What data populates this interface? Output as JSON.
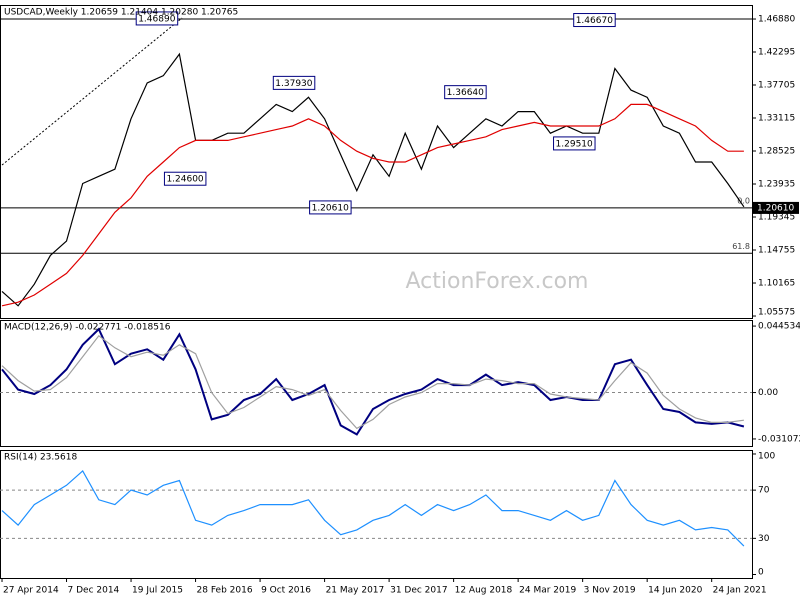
{
  "watermark": "ActionForex.com",
  "chart_data": [
    {
      "type": "line",
      "title": "USDCAD,Weekly  1.20659 1.21404 1.20280 1.20765",
      "x": [
        0,
        8,
        16,
        24,
        32,
        40,
        48,
        56,
        64,
        72,
        80,
        88,
        96,
        104,
        112,
        120,
        128,
        136,
        144,
        152,
        160,
        168,
        176,
        184,
        192,
        200,
        208,
        216,
        224,
        232,
        240,
        248,
        256,
        264,
        272,
        280,
        288,
        296,
        304,
        312,
        320,
        328,
        336,
        344,
        352,
        360,
        368
      ],
      "xlim": [
        -1,
        372
      ],
      "ylim": [
        1.053,
        1.4883
      ],
      "grid": false,
      "series": [
        {
          "color": "#000000",
          "values": [
            1.09,
            1.07,
            1.1,
            1.14,
            1.16,
            1.24,
            1.25,
            1.26,
            1.33,
            1.38,
            1.39,
            1.42,
            1.3,
            1.3,
            1.31,
            1.31,
            1.33,
            1.35,
            1.34,
            1.36,
            1.33,
            1.28,
            1.23,
            1.28,
            1.25,
            1.31,
            1.26,
            1.32,
            1.29,
            1.31,
            1.33,
            1.32,
            1.34,
            1.34,
            1.31,
            1.32,
            1.31,
            1.31,
            1.4,
            1.37,
            1.36,
            1.32,
            1.31,
            1.27,
            1.27,
            1.24,
            1.20765
          ]
        },
        {
          "color": "#e00000",
          "values": [
            1.07,
            1.075,
            1.085,
            1.1,
            1.115,
            1.14,
            1.17,
            1.2,
            1.22,
            1.25,
            1.27,
            1.29,
            1.3,
            1.3,
            1.3,
            1.305,
            1.31,
            1.315,
            1.32,
            1.33,
            1.32,
            1.3,
            1.285,
            1.275,
            1.27,
            1.27,
            1.28,
            1.29,
            1.295,
            1.3,
            1.305,
            1.315,
            1.32,
            1.325,
            1.32,
            1.32,
            1.32,
            1.32,
            1.33,
            1.35,
            1.35,
            1.34,
            1.33,
            1.32,
            1.3,
            1.285,
            1.285
          ]
        }
      ],
      "yticks": [
        {
          "value": 1.4688,
          "label": "1.46880"
        },
        1.42295,
        1.37705,
        1.33115,
        1.28525,
        1.23935,
        1.19345,
        1.14755,
        1.10165,
        1.05575
      ],
      "price_marker": {
        "value": 1.2061,
        "label": "1.20610"
      },
      "levels": [
        {
          "value": 1.4688
        },
        {
          "value": 1.2061,
          "label": "0.0"
        },
        {
          "value": 1.143,
          "label": "61.8"
        }
      ],
      "annotations": [
        {
          "label": "1.46890",
          "value": 1.4689,
          "x": 88
        },
        {
          "label": "1.24600",
          "value": 1.246,
          "x": 102
        },
        {
          "label": "1.37930",
          "value": 1.3793,
          "x": 156
        },
        {
          "label": "1.20610",
          "value": 1.2061,
          "x": 174
        },
        {
          "label": "1.36640",
          "value": 1.3664,
          "x": 241
        },
        {
          "label": "1.29510",
          "value": 1.2951,
          "x": 295
        },
        {
          "label": "1.46670",
          "value": 1.4667,
          "x": 305
        }
      ]
    },
    {
      "type": "line",
      "title": "MACD(12,26,9) -0.022771 -0.018516",
      "x": [
        0,
        8,
        16,
        24,
        32,
        40,
        48,
        56,
        64,
        72,
        80,
        88,
        96,
        104,
        112,
        120,
        128,
        136,
        144,
        152,
        160,
        168,
        176,
        184,
        192,
        200,
        208,
        216,
        224,
        232,
        240,
        248,
        256,
        264,
        272,
        280,
        288,
        296,
        304,
        312,
        320,
        328,
        336,
        344,
        352,
        360,
        368
      ],
      "xlim": [
        -1,
        372
      ],
      "ylim": [
        -0.0358,
        0.0486
      ],
      "grid": true,
      "series": [
        {
          "color": "#000080",
          "values": [
            0.0155,
            0.002,
            -0.001,
            0.005,
            0.0155,
            0.032,
            0.0425,
            0.019,
            0.026,
            0.029,
            0.022,
            0.039,
            0.0155,
            -0.018,
            -0.015,
            -0.005,
            -0.001,
            0.009,
            -0.005,
            -0.001,
            0.005,
            -0.022,
            -0.028,
            -0.011,
            -0.005,
            -0.001,
            0.002,
            0.009,
            0.005,
            0.005,
            0.012,
            0.005,
            0.007,
            0.005,
            -0.005,
            -0.003,
            -0.005,
            -0.005,
            0.019,
            0.022,
            0.005,
            -0.011,
            -0.013,
            -0.02,
            -0.021,
            -0.02,
            -0.022771
          ]
        },
        {
          "color": "#a0a0a0",
          "values": [
            0.018,
            0.008,
            0.001,
            0.002,
            0.01,
            0.024,
            0.038,
            0.03,
            0.024,
            0.027,
            0.025,
            0.032,
            0.026,
            0.0,
            -0.014,
            -0.01,
            -0.003,
            0.004,
            0.002,
            -0.002,
            0.002,
            -0.012,
            -0.024,
            -0.018,
            -0.008,
            -0.003,
            0.0,
            0.006,
            0.006,
            0.005,
            0.009,
            0.008,
            0.006,
            0.006,
            -0.001,
            -0.003,
            -0.004,
            -0.005,
            0.008,
            0.02,
            0.013,
            -0.002,
            -0.011,
            -0.017,
            -0.02,
            -0.02,
            -0.018516
          ]
        }
      ],
      "yticks": [
        0.044534,
        {
          "value": 0,
          "label": "0.00"
        },
        -0.031072
      ]
    },
    {
      "type": "line",
      "title": "RSI(14) 23.5618",
      "x": [
        0,
        8,
        16,
        24,
        32,
        40,
        48,
        56,
        64,
        72,
        80,
        88,
        96,
        104,
        112,
        120,
        128,
        136,
        144,
        152,
        160,
        168,
        176,
        184,
        192,
        200,
        208,
        216,
        224,
        232,
        240,
        248,
        256,
        264,
        272,
        280,
        288,
        296,
        304,
        312,
        320,
        328,
        336,
        344,
        352,
        360,
        368
      ],
      "xlim": [
        -1,
        372
      ],
      "ylim": [
        -2.9,
        103.3
      ],
      "grid": true,
      "series": [
        {
          "color": "#1e90ff",
          "values": [
            53,
            41,
            58,
            66,
            74,
            86,
            62,
            58,
            70,
            66,
            74,
            78,
            45,
            41,
            49,
            53,
            58,
            58,
            58,
            62,
            45,
            33,
            37,
            45,
            49,
            58,
            49,
            58,
            53,
            58,
            66,
            53,
            53,
            49,
            45,
            53,
            45,
            49,
            78,
            58,
            45,
            41,
            45,
            37,
            39,
            37,
            23.5618
          ]
        }
      ],
      "yticks": [
        100,
        70,
        30,
        0
      ],
      "xticks": [
        {
          "value": 0,
          "label": "27 Apr 2014"
        },
        {
          "value": 32,
          "label": "7 Dec 2014"
        },
        {
          "value": 64,
          "label": "19 Jul 2015"
        },
        {
          "value": 96,
          "label": "28 Feb 2016"
        },
        {
          "value": 128,
          "label": "9 Oct 2016"
        },
        {
          "value": 160,
          "label": "21 May 2017"
        },
        {
          "value": 192,
          "label": "31 Dec 2017"
        },
        {
          "value": 224,
          "label": "12 Aug 2018"
        },
        {
          "value": 256,
          "label": "24 Mar 2019"
        },
        {
          "value": 288,
          "label": "3 Nov 2019"
        },
        {
          "value": 320,
          "label": "14 Jun 2020"
        },
        {
          "value": 352,
          "label": "24 Jan 2021"
        }
      ]
    }
  ]
}
